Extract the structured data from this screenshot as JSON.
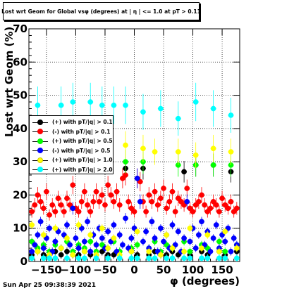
{
  "title": "Lost wrt Geom for Global vsφ (degrees) at | η | <= 1.0 at pT > 0.11",
  "ylabel": "Lost wrt Geom (%)",
  "xlabel": "φ (degrees)",
  "datestamp": "Sun Apr 25 09:38:39 2021",
  "legend": [
    {
      "label": "(+) with pT/|q| > 0.1",
      "color": "#000000"
    },
    {
      "label": "(-) with pT/|q| > 0.1",
      "color": "#ff0000"
    },
    {
      "label": "(+) with pT/|q| > 0.5",
      "color": "#00ff00"
    },
    {
      "label": "(-) with pT/|q| > 0.5",
      "color": "#0000ff"
    },
    {
      "label": "(+) with pT/|q| > 1.0",
      "color": "#ffff00"
    },
    {
      "label": "(+) with pT/|q| > 2.0",
      "color": "#00ffff"
    }
  ],
  "chart_data": {
    "type": "scatter",
    "xlim": [
      -180,
      180
    ],
    "ylim": [
      0,
      70
    ],
    "grid": true,
    "legend_position": "middle-left",
    "x_ticks": [
      -150,
      -100,
      -50,
      0,
      50,
      100,
      150
    ],
    "y_ticks": [
      0,
      10,
      20,
      30,
      40,
      50,
      60,
      70
    ],
    "x_tick_labels": [
      "−150",
      "−100",
      "−50",
      "0",
      "50",
      "100",
      "150"
    ],
    "y_tick_labels": [
      "0",
      "10",
      "20",
      "30",
      "40",
      "50",
      "60",
      "70"
    ],
    "series": [
      {
        "name": "(+) with pT/|q| > 0.1",
        "color": "#000000",
        "x": [
          -175,
          -165,
          -155,
          -145,
          -135,
          -125,
          -115,
          -105,
          -95,
          -85,
          -75,
          -65,
          -55,
          -45,
          -35,
          -25,
          -15,
          -5,
          5,
          15,
          25,
          35,
          45,
          55,
          65,
          75,
          85,
          95,
          105,
          115,
          125,
          135,
          145,
          155,
          165,
          175
        ],
        "y": [
          2,
          3,
          2,
          2,
          3,
          2,
          3,
          2,
          2,
          3,
          2,
          2,
          3,
          2,
          2,
          3,
          28,
          3,
          2,
          28,
          2,
          3,
          2,
          2,
          3,
          2,
          27,
          2,
          29,
          3,
          2,
          29,
          3,
          2,
          27,
          3
        ]
      },
      {
        "name": "(-) with pT/|q| > 0.1",
        "color": "#ff0000",
        "x": [
          -175,
          -170,
          -165,
          -160,
          -155,
          -150,
          -145,
          -140,
          -135,
          -130,
          -125,
          -120,
          -115,
          -110,
          -105,
          -100,
          -95,
          -90,
          -85,
          -80,
          -75,
          -70,
          -65,
          -60,
          -55,
          -50,
          -45,
          -40,
          -35,
          -30,
          -25,
          -20,
          -15,
          -10,
          -5,
          0,
          5,
          10,
          15,
          20,
          25,
          30,
          35,
          40,
          45,
          50,
          55,
          60,
          65,
          70,
          75,
          80,
          85,
          90,
          95,
          100,
          105,
          110,
          115,
          120,
          125,
          130,
          135,
          140,
          145,
          150,
          155,
          160,
          165,
          170,
          175
        ],
        "y": [
          15,
          17,
          20,
          18,
          16,
          21,
          14,
          17,
          15,
          19,
          17,
          15,
          19,
          17,
          23,
          16,
          15,
          18,
          21,
          17,
          15,
          18,
          21,
          18,
          20,
          17,
          23,
          20,
          18,
          21,
          17,
          25,
          26,
          18,
          16,
          15,
          25,
          24,
          18,
          15,
          20,
          18,
          21,
          17,
          19,
          22,
          16,
          18,
          21,
          15,
          19,
          18,
          17,
          22,
          16,
          15,
          17,
          18,
          20,
          17,
          15,
          16,
          18,
          17,
          15,
          19,
          17,
          16,
          18,
          15,
          16
        ]
      },
      {
        "name": "(+) with pT/|q| > 0.5",
        "color": "#00ff00",
        "x": [
          -175,
          -165,
          -155,
          -145,
          -135,
          -125,
          -115,
          -105,
          -95,
          -85,
          -75,
          -65,
          -55,
          -45,
          -35,
          -25,
          -15,
          -5,
          5,
          15,
          25,
          35,
          45,
          55,
          65,
          75,
          85,
          95,
          105,
          115,
          125,
          135,
          145,
          155,
          165,
          175
        ],
        "y": [
          6,
          4,
          5,
          3,
          5,
          4,
          6,
          3,
          5,
          4,
          6,
          3,
          5,
          4,
          6,
          3,
          30,
          4,
          5,
          30,
          4,
          6,
          3,
          5,
          4,
          29,
          6,
          3,
          29,
          5,
          4,
          29,
          6,
          3,
          29,
          5
        ]
      },
      {
        "name": "(-) with pT/|q| > 0.5",
        "color": "#0000ff",
        "x": [
          -175,
          -170,
          -165,
          -160,
          -155,
          -150,
          -145,
          -140,
          -135,
          -130,
          -125,
          -120,
          -115,
          -110,
          -105,
          -100,
          -95,
          -90,
          -85,
          -80,
          -75,
          -70,
          -65,
          -60,
          -55,
          -50,
          -45,
          -40,
          -35,
          -30,
          -25,
          -20,
          -15,
          -10,
          -5,
          0,
          5,
          10,
          15,
          20,
          25,
          30,
          35,
          40,
          45,
          50,
          55,
          60,
          65,
          70,
          75,
          80,
          85,
          90,
          95,
          100,
          105,
          110,
          115,
          120,
          125,
          130,
          135,
          140,
          145,
          150,
          155,
          160,
          165,
          170,
          175
        ],
        "y": [
          3,
          5,
          8,
          12,
          4,
          7,
          10,
          3,
          6,
          9,
          4,
          8,
          11,
          5,
          16,
          7,
          4,
          10,
          6,
          12,
          3,
          8,
          5,
          10,
          7,
          4,
          9,
          6,
          11,
          3,
          8,
          5,
          13,
          4,
          7,
          10,
          25,
          18,
          6,
          9,
          4,
          12,
          7,
          3,
          10,
          6,
          8,
          4,
          11,
          5,
          9,
          3,
          7,
          18,
          6,
          10,
          4,
          8,
          12,
          5,
          9,
          3,
          7,
          11,
          4,
          8,
          6,
          10,
          3,
          7,
          5
        ]
      },
      {
        "name": "(+) with pT/|q| > 1.0",
        "color": "#ffff00",
        "x": [
          -175,
          -165,
          -155,
          -145,
          -135,
          -125,
          -115,
          -105,
          -95,
          -85,
          -75,
          -65,
          -55,
          -45,
          -35,
          -25,
          -15,
          -5,
          5,
          15,
          25,
          35,
          45,
          55,
          65,
          75,
          85,
          95,
          105,
          115,
          125,
          135,
          145,
          155,
          165,
          175
        ],
        "y": [
          11,
          3,
          8,
          2,
          10,
          4,
          7,
          2,
          11,
          3,
          8,
          2,
          10,
          4,
          7,
          2,
          35,
          3,
          9,
          34,
          3,
          33,
          2,
          8,
          4,
          33,
          3,
          10,
          32,
          4,
          8,
          34,
          3,
          9,
          33,
          4
        ]
      },
      {
        "name": "(+) with pT/|q| > 2.0",
        "color": "#00ffff",
        "x": [
          -175,
          -165,
          -155,
          -145,
          -135,
          -125,
          -115,
          -105,
          -95,
          -85,
          -75,
          -65,
          -55,
          -45,
          -35,
          -25,
          -15,
          -5,
          5,
          15,
          25,
          35,
          45,
          55,
          65,
          75,
          85,
          95,
          105,
          115,
          125,
          135,
          145,
          155,
          165,
          175
        ],
        "y": [
          1,
          47,
          1,
          1,
          1,
          47,
          1,
          48,
          1,
          1,
          48,
          1,
          47,
          1,
          47,
          1,
          47,
          1,
          1,
          45,
          1,
          1,
          46,
          1,
          1,
          43,
          1,
          1,
          48,
          1,
          1,
          46,
          1,
          1,
          44,
          1
        ]
      }
    ]
  }
}
